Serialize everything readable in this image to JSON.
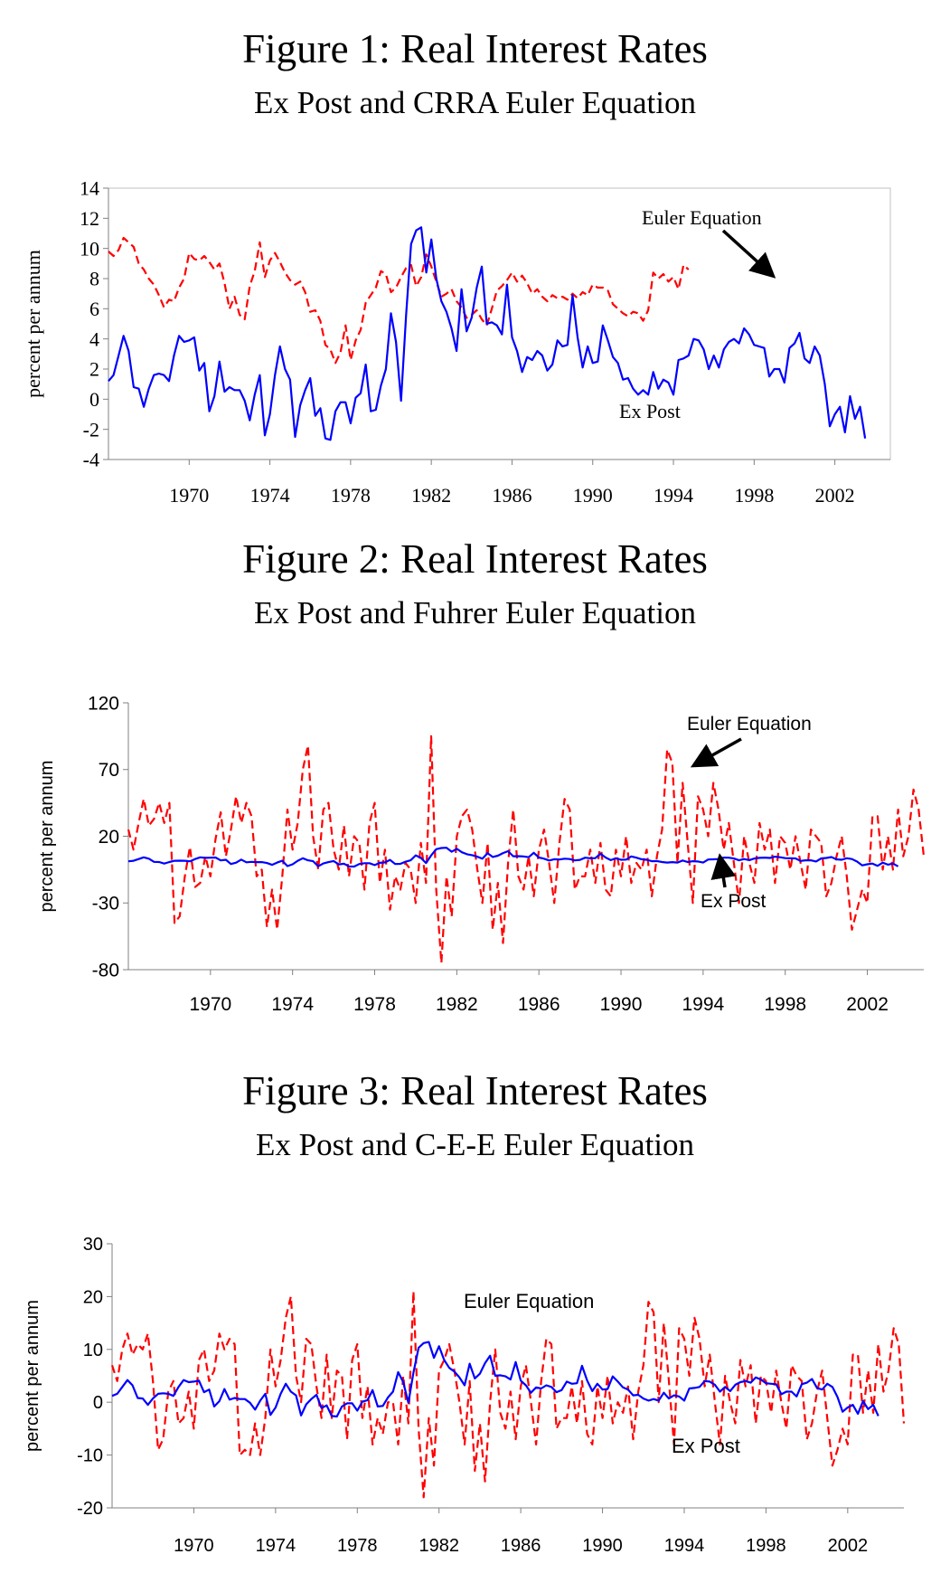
{
  "chart_data": [
    {
      "type": "line",
      "title": "Figure 1: Real Interest Rates",
      "subtitle": "Ex Post and CRRA Euler Equation",
      "ylabel": "percent per annum",
      "xlabel": "",
      "ylim": [
        -4,
        14
      ],
      "yticks": [
        -4,
        -2,
        0,
        2,
        4,
        6,
        8,
        10,
        12,
        14
      ],
      "xlim": [
        1966.0,
        2004.75
      ],
      "xticks": [
        "1970",
        "1974",
        "1978",
        "1982",
        "1986",
        "1990",
        "1994",
        "1998",
        "2002"
      ],
      "annotations": [
        {
          "text": "Euler Equation",
          "arrow": true
        },
        {
          "text": "Ex Post",
          "arrow": false
        }
      ],
      "series": [
        {
          "name": "Euler Equation",
          "color": "#ff0000",
          "dash": "dashed",
          "x_start": 1966.0,
          "step": 0.25,
          "values": [
            9.8,
            9.5,
            9.9,
            10.7,
            10.4,
            10.1,
            9.0,
            8.6,
            8.0,
            7.6,
            6.9,
            6.1,
            6.6,
            6.5,
            7.4,
            8.0,
            9.7,
            9.3,
            9.2,
            9.5,
            9.1,
            8.6,
            9.0,
            7.7,
            6.0,
            6.8,
            5.6,
            5.3,
            7.5,
            8.5,
            10.4,
            8.1,
            9.2,
            9.7,
            9.1,
            8.4,
            7.9,
            7.6,
            7.8,
            7.1,
            5.8,
            5.9,
            5.2,
            3.6,
            3.3,
            2.4,
            3.1,
            4.9,
            2.6,
            3.9,
            4.6,
            6.4,
            6.9,
            7.4,
            8.5,
            8.3,
            7.1,
            7.4,
            8.1,
            8.7,
            8.9,
            7.5,
            8.1,
            9.6,
            8.8,
            7.8,
            6.8,
            7.0,
            7.3,
            6.5,
            6.1,
            5.4,
            5.6,
            5.9,
            5.3,
            4.9,
            6.0,
            7.2,
            7.5,
            7.9,
            8.4,
            7.8,
            8.2,
            7.7,
            7.0,
            7.3,
            6.8,
            6.5,
            6.9,
            6.7,
            6.8,
            6.6,
            7.0,
            6.7,
            7.1,
            6.9,
            7.6,
            7.4,
            7.4,
            7.2,
            6.3,
            6.0,
            5.7,
            5.5,
            5.8,
            5.7,
            5.2,
            5.9,
            8.4,
            8.0,
            8.3,
            7.8,
            8.1,
            7.3,
            8.9,
            8.6
          ]
        },
        {
          "name": "Ex Post",
          "color": "#0000ff",
          "dash": "solid",
          "x_start": 1966.0,
          "step": 0.25,
          "values": [
            1.2,
            1.6,
            2.9,
            4.2,
            3.2,
            0.8,
            0.7,
            -0.5,
            0.7,
            1.6,
            1.7,
            1.6,
            1.2,
            2.9,
            4.2,
            3.8,
            3.9,
            4.1,
            1.9,
            2.4,
            -0.8,
            0.2,
            2.5,
            0.5,
            0.8,
            0.6,
            0.6,
            -0.1,
            -1.4,
            0.3,
            1.6,
            -2.4,
            -1.0,
            1.6,
            3.5,
            2.0,
            1.3,
            -2.5,
            -0.4,
            0.6,
            1.4,
            -1.1,
            -0.6,
            -2.6,
            -2.7,
            -0.8,
            -0.2,
            -0.2,
            -1.6,
            0.1,
            0.4,
            2.3,
            -0.8,
            -0.7,
            0.9,
            2.0,
            5.7,
            3.8,
            -0.1,
            5.6,
            10.3,
            11.2,
            11.4,
            8.4,
            10.6,
            8.0,
            6.5,
            5.8,
            4.7,
            3.2,
            7.3,
            4.5,
            5.4,
            7.4,
            8.8,
            5.0,
            5.1,
            4.9,
            4.3,
            7.6,
            4.1,
            3.2,
            1.8,
            2.8,
            2.6,
            3.2,
            2.9,
            1.9,
            2.3,
            3.9,
            3.5,
            3.6,
            6.9,
            4.1,
            2.1,
            3.5,
            2.4,
            2.5,
            4.9,
            3.9,
            2.8,
            2.4,
            1.3,
            1.4,
            0.7,
            0.3,
            0.6,
            0.3,
            1.8,
            0.7,
            1.3,
            1.1,
            0.3,
            2.6,
            2.7,
            2.9,
            4.0,
            3.9,
            3.3,
            2.0,
            2.9,
            2.1,
            3.3,
            3.8,
            4.0,
            3.7,
            4.7,
            4.3,
            3.6,
            3.5,
            3.4,
            1.5,
            2.0,
            2.0,
            1.1,
            3.4,
            3.7,
            4.4,
            2.7,
            2.4,
            3.5,
            2.9,
            1.0,
            -1.8,
            -1.0,
            -0.5,
            -2.2,
            0.2,
            -1.3,
            -0.5,
            -2.6
          ]
        }
      ]
    },
    {
      "type": "line",
      "title": "Figure 2: Real Interest Rates",
      "subtitle": "Ex Post and Fuhrer Euler Equation",
      "ylabel": "percent per annum",
      "xlabel": "",
      "ylim": [
        -80,
        120
      ],
      "yticks": [
        -80,
        -30,
        20,
        70,
        120
      ],
      "xlim": [
        1966.0,
        2004.75
      ],
      "xticks": [
        "1970",
        "1974",
        "1978",
        "1982",
        "1986",
        "1990",
        "1994",
        "1998",
        "2002"
      ],
      "annotations": [
        {
          "text": "Euler Equation",
          "arrow": true
        },
        {
          "text": "Ex Post",
          "arrow": true
        }
      ],
      "series": [
        {
          "name": "Euler Equation",
          "color": "#ff0000",
          "dash": "dashed",
          "x_start": 1966.0,
          "step": 0.25,
          "values": [
            25,
            10,
            30,
            48,
            28,
            33,
            45,
            30,
            45,
            -45,
            -40,
            -10,
            12,
            -18,
            -15,
            5,
            -10,
            18,
            38,
            5,
            25,
            50,
            30,
            45,
            35,
            -10,
            -5,
            -48,
            -20,
            -50,
            -10,
            40,
            10,
            30,
            70,
            88,
            20,
            -5,
            40,
            45,
            10,
            -5,
            28,
            -10,
            20,
            15,
            -20,
            30,
            45,
            -15,
            10,
            -35,
            -10,
            -20,
            0,
            -5,
            -30,
            15,
            -15,
            95,
            -20,
            -75,
            -10,
            -40,
            20,
            35,
            40,
            25,
            -5,
            -30,
            15,
            -50,
            -15,
            -60,
            0,
            40,
            -10,
            -20,
            5,
            -25,
            10,
            25,
            0,
            -30,
            15,
            48,
            40,
            -20,
            -10,
            -10,
            10,
            -15,
            15,
            -20,
            -25,
            10,
            -10,
            20,
            -15,
            0,
            -5,
            10,
            -25,
            5,
            25,
            85,
            75,
            0,
            60,
            15,
            -30,
            50,
            40,
            20,
            60,
            40,
            10,
            30,
            0,
            -30,
            20,
            0,
            -15,
            30,
            10,
            25,
            -15,
            20,
            15,
            -5,
            20,
            0,
            -20,
            25,
            20,
            15,
            -25,
            -15,
            5,
            20,
            -10,
            -50,
            -35,
            -20,
            -30,
            35,
            35,
            -5,
            20,
            -5,
            40,
            5,
            20,
            55,
            40,
            5
          ]
        },
        {
          "name": "Ex Post",
          "color": "#0000ff",
          "dash": "solid",
          "x_start": 1966.0,
          "step": 0.25,
          "values": [
            1.2,
            1.6,
            2.9,
            4.2,
            3.2,
            0.8,
            0.7,
            -0.5,
            0.7,
            1.6,
            1.7,
            1.6,
            1.2,
            2.9,
            4.2,
            3.8,
            3.9,
            4.1,
            1.9,
            2.4,
            -0.8,
            0.2,
            2.5,
            0.5,
            0.8,
            0.6,
            0.6,
            -0.1,
            -1.4,
            0.3,
            1.6,
            -2.4,
            -1.0,
            1.6,
            3.5,
            2.0,
            1.3,
            -2.5,
            -0.4,
            0.6,
            1.4,
            -1.1,
            -0.6,
            -2.6,
            -2.7,
            -0.8,
            -0.2,
            -0.2,
            -1.6,
            0.1,
            0.4,
            2.3,
            -0.8,
            -0.7,
            0.9,
            2.0,
            5.7,
            3.8,
            -0.1,
            5.6,
            10.3,
            11.2,
            11.4,
            8.4,
            10.6,
            8.0,
            6.5,
            5.8,
            4.7,
            3.2,
            7.3,
            4.5,
            5.4,
            7.4,
            8.8,
            5.0,
            5.1,
            4.9,
            4.3,
            7.6,
            4.1,
            3.2,
            1.8,
            2.8,
            2.6,
            3.2,
            2.9,
            1.9,
            2.3,
            3.9,
            3.5,
            3.6,
            6.9,
            4.1,
            2.1,
            3.5,
            2.4,
            2.5,
            4.9,
            3.9,
            2.8,
            2.4,
            1.3,
            1.4,
            0.7,
            0.3,
            0.6,
            0.3,
            1.8,
            0.7,
            1.3,
            1.1,
            0.3,
            2.6,
            2.7,
            2.9,
            4.0,
            3.9,
            3.3,
            2.0,
            2.9,
            2.1,
            3.3,
            3.8,
            4.0,
            3.7,
            4.7,
            4.3,
            3.6,
            3.5,
            3.4,
            1.5,
            2.0,
            2.0,
            1.1,
            3.4,
            3.7,
            4.4,
            2.7,
            2.4,
            3.5,
            2.9,
            1.0,
            -1.8,
            -1.0,
            -0.5,
            -2.2,
            0.2,
            -1.3,
            -0.5,
            -2.6
          ]
        }
      ]
    },
    {
      "type": "line",
      "title": "Figure 3: Real Interest Rates",
      "subtitle": "Ex Post and C-E-E Euler Equation",
      "ylabel": "percent per annum",
      "xlabel": "",
      "ylim": [
        -20,
        30
      ],
      "yticks": [
        -20,
        -10,
        0,
        10,
        20,
        30
      ],
      "xlim": [
        1966.0,
        2004.75
      ],
      "xticks": [
        "1970",
        "1974",
        "1978",
        "1982",
        "1986",
        "1990",
        "1994",
        "1998",
        "2002"
      ],
      "annotations": [
        {
          "text": "Euler Equation",
          "arrow": false
        },
        {
          "text": "Ex Post",
          "arrow": false
        }
      ],
      "series": [
        {
          "name": "Euler Equation",
          "color": "#ff0000",
          "dash": "dashed",
          "x_start": 1966.0,
          "step": 0.25,
          "values": [
            7,
            4,
            10,
            13,
            9,
            11,
            10,
            13,
            4,
            -9,
            -7,
            2,
            4,
            -4,
            -3,
            2,
            -5,
            8,
            10,
            4,
            6,
            13,
            10,
            12,
            11,
            -10,
            -9,
            -10,
            -4,
            -10,
            -3,
            10,
            3,
            8,
            16,
            20,
            5,
            0,
            12,
            11,
            3,
            -3,
            9,
            -3,
            6,
            5,
            -7,
            8,
            11,
            -3,
            3,
            -8,
            -3,
            -6,
            0,
            0,
            -8,
            5,
            -4,
            21,
            -5,
            -18,
            -3,
            -12,
            6,
            8,
            11,
            6,
            0,
            -8,
            4,
            -13,
            -4,
            -15,
            0,
            10,
            -2,
            -5,
            2,
            -7,
            3,
            7,
            0,
            -8,
            4,
            12,
            11,
            -5,
            -3,
            -3,
            3,
            -4,
            4,
            -6,
            -8,
            3,
            -3,
            5,
            -4,
            0,
            -2,
            3,
            -7,
            2,
            7,
            19,
            17,
            0,
            15,
            4,
            -8,
            14,
            12,
            5,
            16,
            12,
            3,
            9,
            0,
            -8,
            5,
            0,
            -4,
            8,
            3,
            7,
            -4,
            5,
            4,
            -2,
            6,
            0,
            -5,
            7,
            5,
            4,
            -7,
            -4,
            2,
            6,
            -3,
            -12,
            -9,
            -5,
            -8,
            9,
            9,
            -2,
            6,
            -2,
            11,
            2,
            6,
            14,
            11,
            -4
          ]
        },
        {
          "name": "Ex Post",
          "color": "#0000ff",
          "dash": "solid",
          "x_start": 1966.0,
          "step": 0.25,
          "values": [
            1.2,
            1.6,
            2.9,
            4.2,
            3.2,
            0.8,
            0.7,
            -0.5,
            0.7,
            1.6,
            1.7,
            1.6,
            1.2,
            2.9,
            4.2,
            3.8,
            3.9,
            4.1,
            1.9,
            2.4,
            -0.8,
            0.2,
            2.5,
            0.5,
            0.8,
            0.6,
            0.6,
            -0.1,
            -1.4,
            0.3,
            1.6,
            -2.4,
            -1.0,
            1.6,
            3.5,
            2.0,
            1.3,
            -2.5,
            -0.4,
            0.6,
            1.4,
            -1.1,
            -0.6,
            -2.6,
            -2.7,
            -0.8,
            -0.2,
            -0.2,
            -1.6,
            0.1,
            0.4,
            2.3,
            -0.8,
            -0.7,
            0.9,
            2.0,
            5.7,
            3.8,
            -0.1,
            5.6,
            10.3,
            11.2,
            11.4,
            8.4,
            10.6,
            8.0,
            6.5,
            5.8,
            4.7,
            3.2,
            7.3,
            4.5,
            5.4,
            7.4,
            8.8,
            5.0,
            5.1,
            4.9,
            4.3,
            7.6,
            4.1,
            3.2,
            1.8,
            2.8,
            2.6,
            3.2,
            2.9,
            1.9,
            2.3,
            3.9,
            3.5,
            3.6,
            6.9,
            4.1,
            2.1,
            3.5,
            2.4,
            2.5,
            4.9,
            3.9,
            2.8,
            2.4,
            1.3,
            1.4,
            0.7,
            0.3,
            0.6,
            0.3,
            1.8,
            0.7,
            1.3,
            1.1,
            0.3,
            2.6,
            2.7,
            2.9,
            4.0,
            3.9,
            3.3,
            2.0,
            2.9,
            2.1,
            3.3,
            3.8,
            4.0,
            3.7,
            4.7,
            4.3,
            3.6,
            3.5,
            3.4,
            1.5,
            2.0,
            2.0,
            1.1,
            3.4,
            3.7,
            4.4,
            2.7,
            2.4,
            3.5,
            2.9,
            1.0,
            -1.8,
            -1.0,
            -0.5,
            -2.2,
            0.2,
            -1.3,
            -0.5,
            -2.6
          ]
        }
      ]
    }
  ]
}
